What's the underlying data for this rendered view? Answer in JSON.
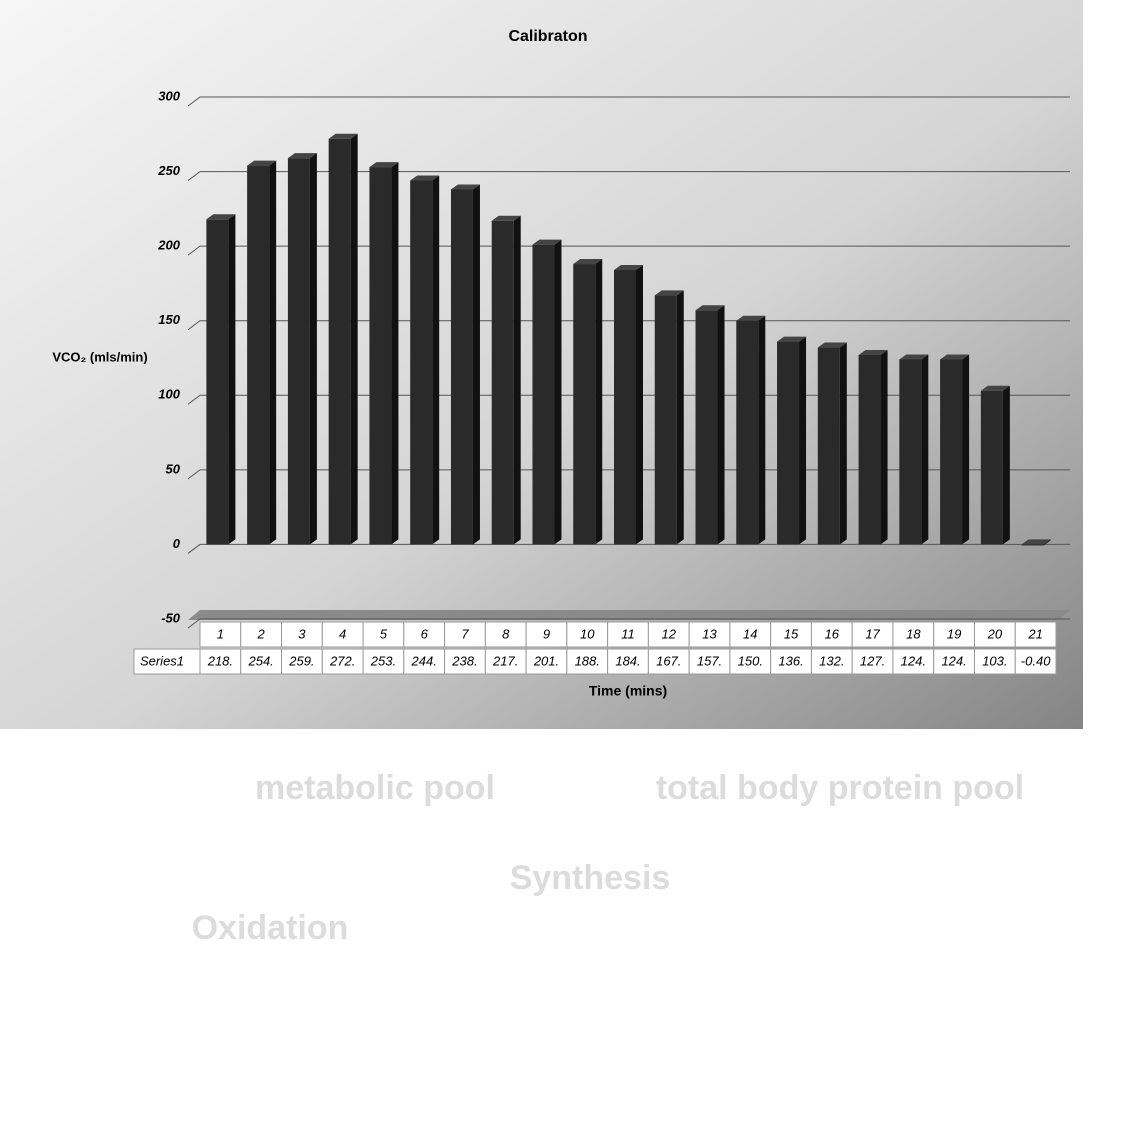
{
  "chart_data": {
    "type": "bar",
    "title": "Calibraton",
    "y_label": "VCO₂ (mls/min)",
    "x_label": "Time (mins)",
    "categories": [
      "1",
      "2",
      "3",
      "4",
      "5",
      "6",
      "7",
      "8",
      "9",
      "10",
      "11",
      "12",
      "13",
      "14",
      "15",
      "16",
      "17",
      "18",
      "19",
      "20",
      "21"
    ],
    "series": [
      {
        "name": "Series1",
        "color": "#2a2a2a",
        "values": [
          218,
          254,
          259,
          272,
          253,
          244,
          238,
          217,
          201,
          188,
          184,
          167,
          157,
          150,
          136,
          132,
          127,
          124,
          124,
          103,
          -0.4
        ],
        "value_labels": [
          "218.",
          "254.",
          "259.",
          "272.",
          "253.",
          "244.",
          "238.",
          "217.",
          "201.",
          "188.",
          "184.",
          "167.",
          "157.",
          "150.",
          "136.",
          "132.",
          "127.",
          "124.",
          "124.",
          "103.",
          "-0.40"
        ]
      }
    ],
    "ylim": [
      -50,
      300
    ],
    "yticks": [
      -50,
      0,
      50,
      100,
      150,
      200,
      250,
      300
    ],
    "grid": true
  },
  "background": {
    "labels": [
      "metabolic pool",
      "total body protein pool",
      "Synthesis",
      "Oxidation"
    ]
  }
}
